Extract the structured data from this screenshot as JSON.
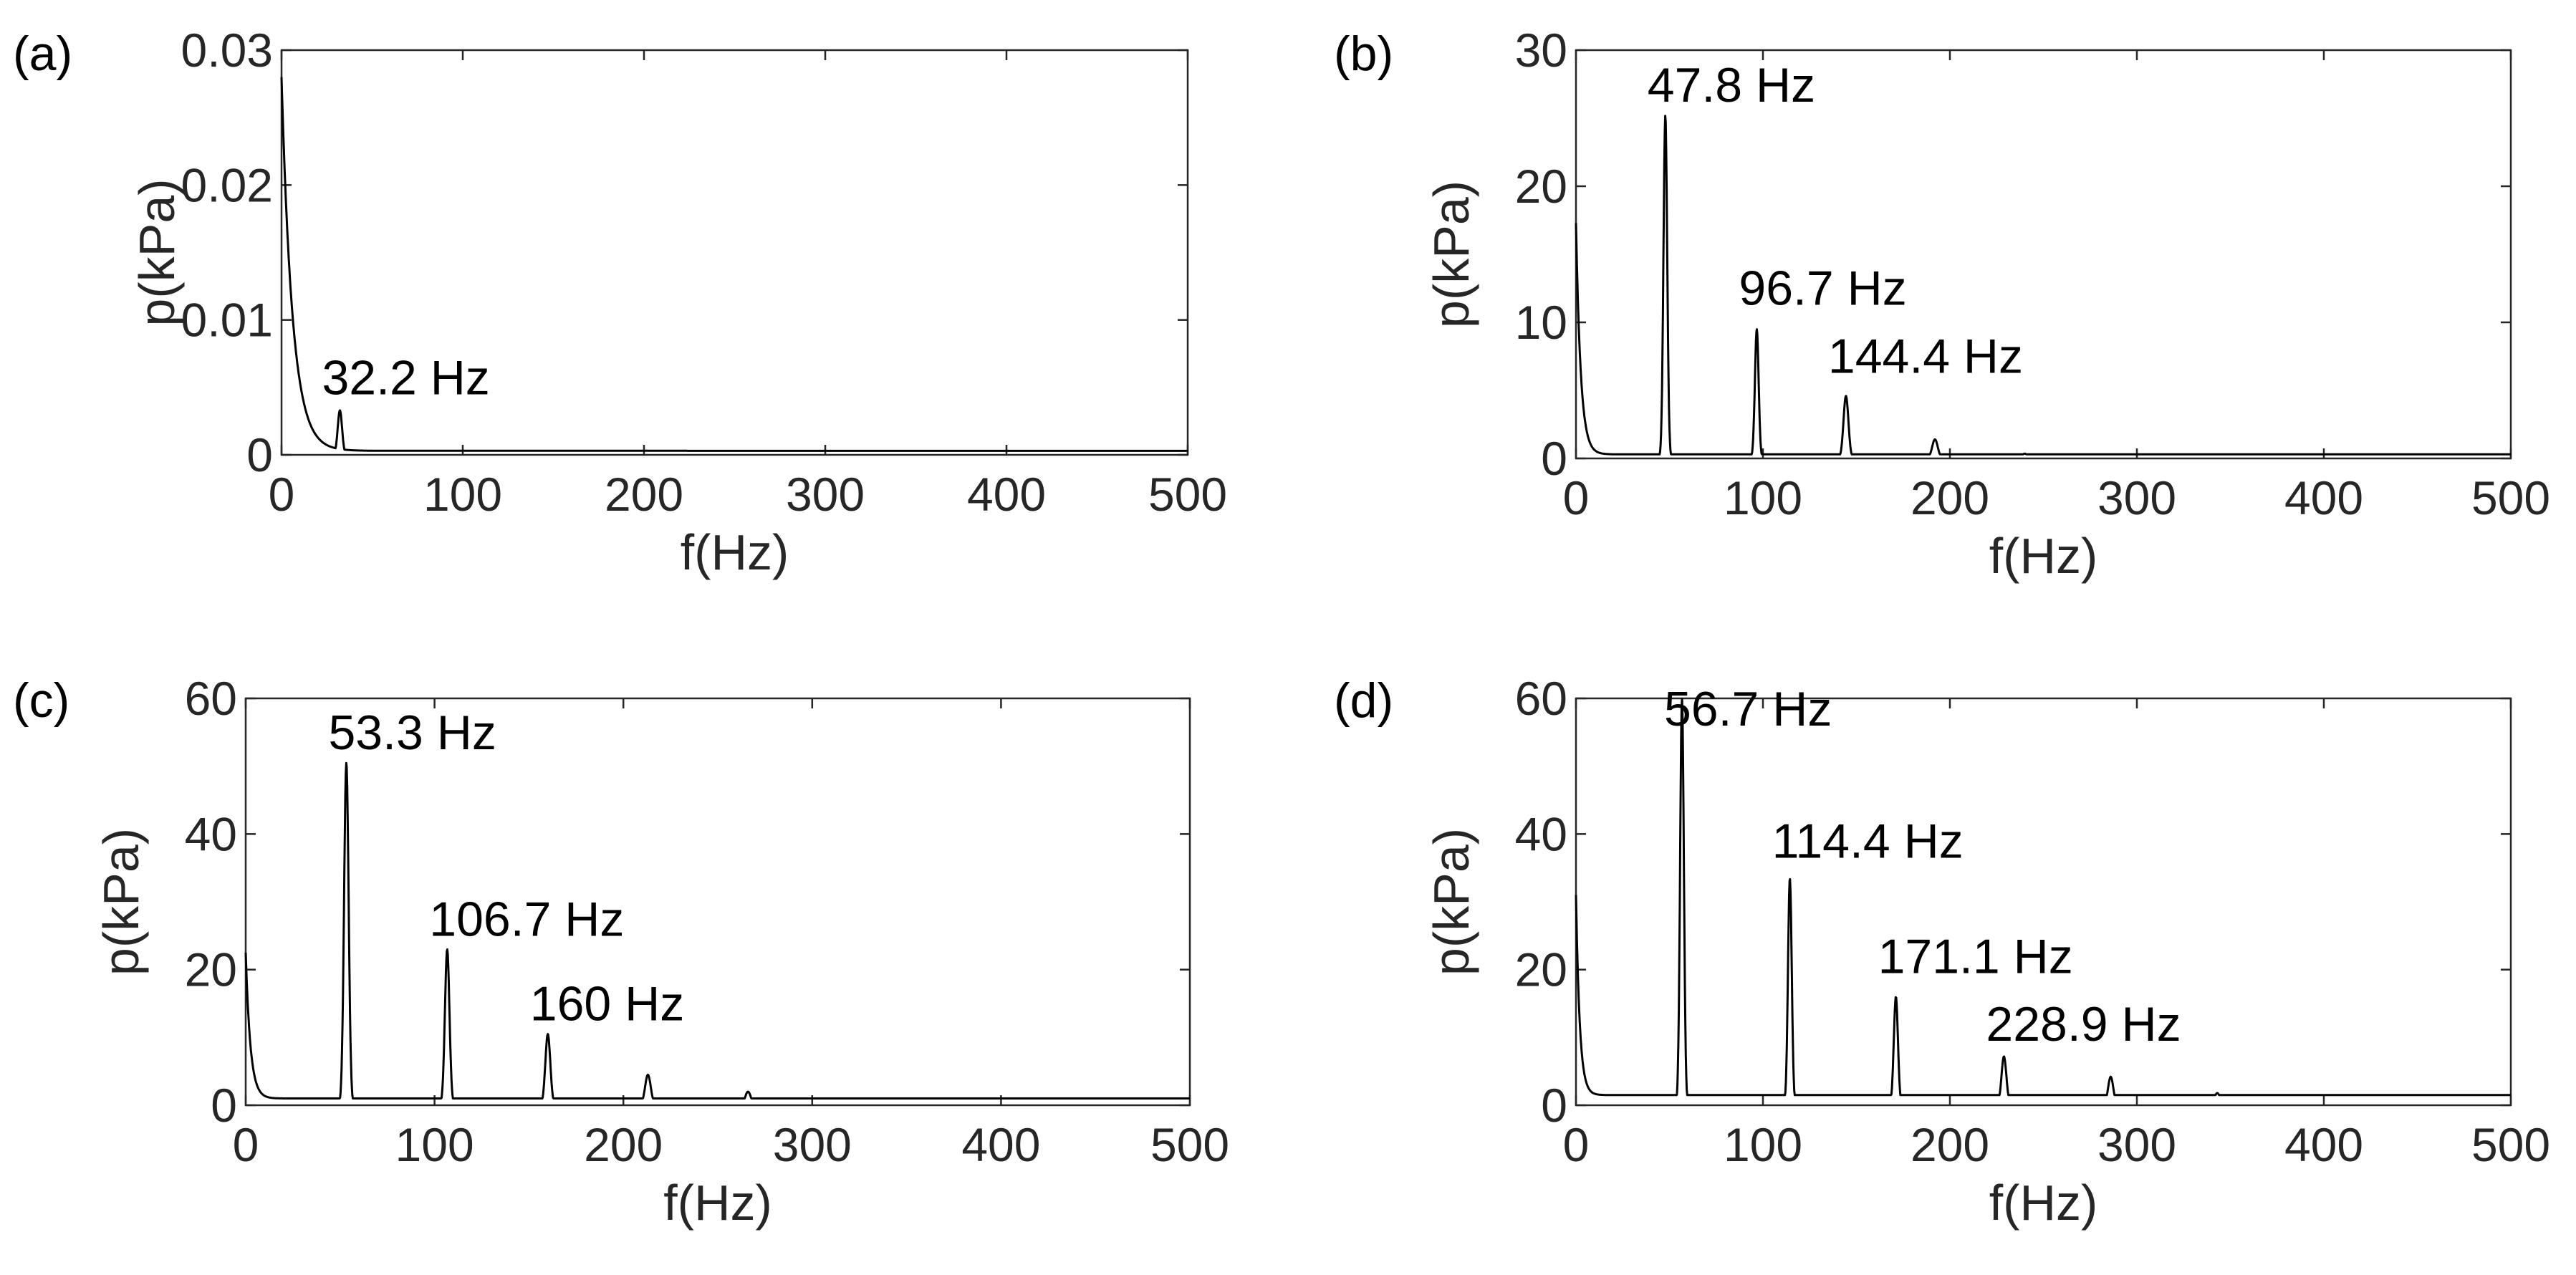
{
  "figure": {
    "panels": [
      {
        "label": "(a)"
      },
      {
        "label": "(b)"
      },
      {
        "label": "(c)"
      },
      {
        "label": "(d)"
      }
    ]
  },
  "chart_data": [
    {
      "type": "line",
      "panel": "(a)",
      "title": "",
      "xlabel": "f(Hz)",
      "ylabel": "p(kPa)",
      "xlim": [
        0,
        500
      ],
      "ylim": [
        0,
        0.03
      ],
      "xticks": [
        0,
        100,
        200,
        300,
        400,
        500
      ],
      "yticks": [
        0,
        0.01,
        0.02,
        0.03
      ],
      "ytick_labels": [
        "0",
        "0.01",
        "0.02",
        "0.03"
      ],
      "grid": false,
      "baseline": {
        "decay": true,
        "start": 0.028,
        "tau": 6,
        "floor": 0.0003
      },
      "peaks": [
        {
          "f": 32.2,
          "p": 0.0033,
          "w": 1.2
        }
      ],
      "annotations": [
        {
          "text": "32.2 Hz",
          "x": 32.2,
          "y": 0.0045
        }
      ]
    },
    {
      "type": "line",
      "panel": "(b)",
      "title": "",
      "xlabel": "f(Hz)",
      "ylabel": "p(kPa)",
      "xlim": [
        0,
        500
      ],
      "ylim": [
        0,
        30
      ],
      "xticks": [
        0,
        100,
        200,
        300,
        400,
        500
      ],
      "yticks": [
        0,
        10,
        20,
        30
      ],
      "ytick_labels": [
        "0",
        "10",
        "20",
        "30"
      ],
      "grid": false,
      "baseline": {
        "decay": true,
        "start": 17.3,
        "tau": 2.5,
        "floor": 0.3
      },
      "peaks": [
        {
          "f": 47.8,
          "p": 25.2,
          "w": 1.0
        },
        {
          "f": 96.7,
          "p": 9.5,
          "w": 1.0
        },
        {
          "f": 144.4,
          "p": 4.6,
          "w": 1.3
        },
        {
          "f": 192,
          "p": 1.4,
          "w": 1.5
        },
        {
          "f": 240,
          "p": 0.35,
          "w": 1.5
        },
        {
          "f": 288,
          "p": 0.25,
          "w": 1.5
        },
        {
          "f": 336,
          "p": 0.3,
          "w": 1.5
        },
        {
          "f": 384,
          "p": 0.25,
          "w": 1.5
        },
        {
          "f": 432,
          "p": 0.2,
          "w": 1.5
        },
        {
          "f": 480,
          "p": 0.15,
          "w": 1.5
        }
      ],
      "annotations": [
        {
          "text": "47.8 Hz",
          "x": 47.8,
          "y": 26.2
        },
        {
          "text": "96.7 Hz",
          "x": 96.7,
          "y": 11.3
        },
        {
          "text": "144.4 Hz",
          "x": 144.4,
          "y": 6.3
        }
      ]
    },
    {
      "type": "line",
      "panel": "(c)",
      "title": "",
      "xlabel": "f(Hz)",
      "ylabel": "p(kPa)",
      "xlim": [
        0,
        500
      ],
      "ylim": [
        0,
        60
      ],
      "xticks": [
        0,
        100,
        200,
        300,
        400,
        500
      ],
      "yticks": [
        0,
        20,
        40,
        60
      ],
      "ytick_labels": [
        "0",
        "20",
        "40",
        "60"
      ],
      "grid": false,
      "baseline": {
        "decay": true,
        "start": 22.5,
        "tau": 2.5,
        "floor": 1.0
      },
      "peaks": [
        {
          "f": 53.3,
          "p": 50.5,
          "w": 1.2
        },
        {
          "f": 106.7,
          "p": 23.0,
          "w": 1.2
        },
        {
          "f": 160,
          "p": 10.5,
          "w": 1.3
        },
        {
          "f": 213,
          "p": 4.5,
          "w": 1.5
        },
        {
          "f": 266,
          "p": 2.0,
          "w": 1.5
        },
        {
          "f": 320,
          "p": 0.8,
          "w": 1.5
        },
        {
          "f": 427,
          "p": 0.4,
          "w": 1.5
        },
        {
          "f": 480,
          "p": 0.3,
          "w": 1.5
        }
      ],
      "annotations": [
        {
          "text": "53.3 Hz",
          "x": 53.3,
          "y": 52.5
        },
        {
          "text": "106.7 Hz",
          "x": 106.7,
          "y": 25.0
        },
        {
          "text": "160 Hz",
          "x": 160,
          "y": 12.5
        }
      ]
    },
    {
      "type": "line",
      "panel": "(d)",
      "title": "",
      "xlabel": "f(Hz)",
      "ylabel": "p(kPa)",
      "xlim": [
        0,
        500
      ],
      "ylim": [
        0,
        60
      ],
      "xticks": [
        0,
        100,
        200,
        300,
        400,
        500
      ],
      "yticks": [
        0,
        20,
        40,
        60
      ],
      "ytick_labels": [
        "0",
        "20",
        "40",
        "60"
      ],
      "grid": false,
      "baseline": {
        "decay": true,
        "start": 31,
        "tau": 2.0,
        "floor": 1.5
      },
      "peaks": [
        {
          "f": 56.7,
          "p": 60,
          "w": 1.0
        },
        {
          "f": 114.4,
          "p": 33.5,
          "w": 1.0
        },
        {
          "f": 171.1,
          "p": 16.0,
          "w": 1.1
        },
        {
          "f": 228.9,
          "p": 7.2,
          "w": 1.3
        },
        {
          "f": 286,
          "p": 4.2,
          "w": 1.4
        },
        {
          "f": 343,
          "p": 1.8,
          "w": 1.5
        },
        {
          "f": 400,
          "p": 0.9,
          "w": 1.5
        }
      ],
      "annotations": [
        {
          "text": "56.7 Hz",
          "x": 56.7,
          "y": 56
        },
        {
          "text": "114.4 Hz",
          "x": 114.4,
          "y": 36.5
        },
        {
          "text": "171.1 Hz",
          "x": 171.1,
          "y": 19.5
        },
        {
          "text": "228.9 Hz",
          "x": 228.9,
          "y": 9.5
        }
      ]
    }
  ]
}
